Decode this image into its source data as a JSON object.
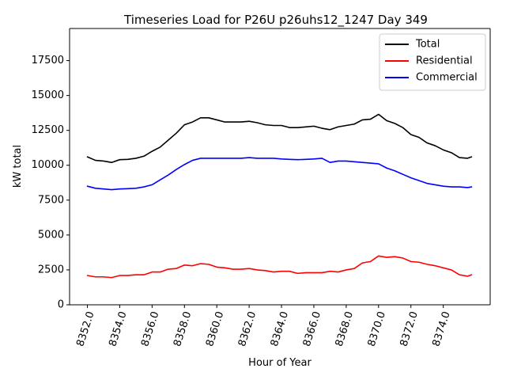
{
  "chart_data": {
    "type": "line",
    "title": "Timeseries Load for P26U p26uhs12_1247  Day 349",
    "xlabel": "Hour of Year",
    "ylabel": "kW total",
    "xlim": [
      8350.9,
      8376.9
    ],
    "ylim": [
      0,
      19800
    ],
    "xticks": [
      8352,
      8354,
      8356,
      8358,
      8360,
      8362,
      8364,
      8366,
      8368,
      8370,
      8372,
      8374
    ],
    "xtick_labels": [
      "8352.0",
      "8354.0",
      "8356.0",
      "8358.0",
      "8360.0",
      "8362.0",
      "8364.0",
      "8366.0",
      "8368.0",
      "8370.0",
      "8372.0",
      "8374.0"
    ],
    "yticks": [
      0,
      2500,
      5000,
      7500,
      10000,
      12500,
      15000,
      17500
    ],
    "ytick_labels": [
      "0",
      "2500",
      "5000",
      "7500",
      "10000",
      "12500",
      "15000",
      "17500"
    ],
    "legend_position": "top-right",
    "series": [
      {
        "name": "Total",
        "color": "#000000",
        "x": [
          8352,
          8352.5,
          8353,
          8353.5,
          8354,
          8354.5,
          8355,
          8355.5,
          8356,
          8356.5,
          8357,
          8357.5,
          8358,
          8358.5,
          8359,
          8359.5,
          8360,
          8360.5,
          8361,
          8361.5,
          8362,
          8362.5,
          8363,
          8363.5,
          8364,
          8364.5,
          8365,
          8365.5,
          8366,
          8366.5,
          8367,
          8367.5,
          8368,
          8368.5,
          8369,
          8369.5,
          8370,
          8370.5,
          8371,
          8371.5,
          8372,
          8372.5,
          8373,
          8373.5,
          8374,
          8374.5,
          8375,
          8375.5,
          8375.75
        ],
        "values": [
          10600,
          10350,
          10300,
          10200,
          10400,
          10420,
          10500,
          10650,
          11000,
          11300,
          11800,
          12300,
          12900,
          13100,
          13400,
          13400,
          13250,
          13100,
          13100,
          13100,
          13150,
          13050,
          12900,
          12850,
          12850,
          12700,
          12700,
          12750,
          12800,
          12650,
          12550,
          12750,
          12850,
          12950,
          13250,
          13300,
          13650,
          13200,
          13000,
          12700,
          12200,
          12000,
          11600,
          11400,
          11100,
          10900,
          10550,
          10500,
          10600
        ]
      },
      {
        "name": "Residential",
        "color": "#ff0000",
        "x": [
          8352,
          8352.5,
          8353,
          8353.5,
          8354,
          8354.5,
          8355,
          8355.5,
          8356,
          8356.5,
          8357,
          8357.5,
          8358,
          8358.5,
          8359,
          8359.5,
          8360,
          8360.5,
          8361,
          8361.5,
          8362,
          8362.5,
          8363,
          8363.5,
          8364,
          8364.5,
          8365,
          8365.5,
          8366,
          8366.5,
          8367,
          8367.5,
          8368,
          8368.5,
          8369,
          8369.5,
          8370,
          8370.5,
          8371,
          8371.5,
          8372,
          8372.5,
          8373,
          8373.5,
          8374,
          8374.5,
          8375,
          8375.5,
          8375.75
        ],
        "values": [
          2100,
          2000,
          2000,
          1950,
          2100,
          2100,
          2150,
          2150,
          2350,
          2350,
          2550,
          2600,
          2850,
          2800,
          2950,
          2900,
          2700,
          2650,
          2550,
          2550,
          2600,
          2500,
          2450,
          2350,
          2400,
          2400,
          2250,
          2300,
          2300,
          2300,
          2400,
          2350,
          2500,
          2600,
          3000,
          3100,
          3500,
          3400,
          3450,
          3350,
          3100,
          3050,
          2900,
          2800,
          2650,
          2500,
          2150,
          2050,
          2150
        ]
      },
      {
        "name": "Commercial",
        "color": "#0000ff",
        "x": [
          8352,
          8352.5,
          8353,
          8353.5,
          8354,
          8354.5,
          8355,
          8355.5,
          8356,
          8356.5,
          8357,
          8357.5,
          8358,
          8358.5,
          8359,
          8359.5,
          8360,
          8360.5,
          8361,
          8361.5,
          8362,
          8362.5,
          8363,
          8363.5,
          8364,
          8364.5,
          8365,
          8365.5,
          8366,
          8366.5,
          8367,
          8367.5,
          8368,
          8368.5,
          8369,
          8369.5,
          8370,
          8370.5,
          8371,
          8371.5,
          8372,
          8372.5,
          8373,
          8373.5,
          8374,
          8374.5,
          8375,
          8375.5,
          8375.75
        ],
        "values": [
          8500,
          8350,
          8300,
          8250,
          8300,
          8320,
          8350,
          8450,
          8600,
          8950,
          9300,
          9700,
          10050,
          10350,
          10500,
          10500,
          10500,
          10500,
          10500,
          10500,
          10550,
          10500,
          10500,
          10500,
          10450,
          10420,
          10400,
          10420,
          10450,
          10500,
          10200,
          10300,
          10300,
          10250,
          10200,
          10150,
          10100,
          9800,
          9600,
          9350,
          9100,
          8900,
          8700,
          8600,
          8500,
          8450,
          8450,
          8400,
          8450
        ]
      }
    ]
  }
}
